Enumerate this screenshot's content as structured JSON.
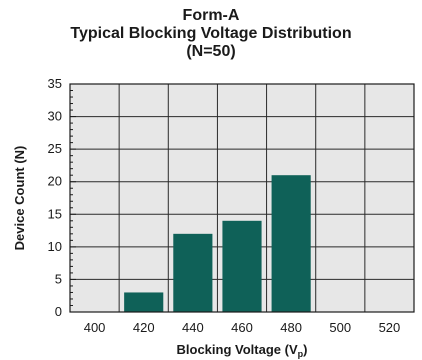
{
  "chart_data": {
    "type": "bar",
    "title_lines": [
      "Form-A",
      "Typical Blocking Voltage Distribution",
      "(N=50)"
    ],
    "xlabel": "Blocking Voltage (V",
    "xlabel_subscript": "p",
    "xlabel_suffix": ")",
    "ylabel": "Device Count (N)",
    "x_ticks": [
      "400",
      "420",
      "440",
      "460",
      "480",
      "500",
      "520"
    ],
    "y_ticks": [
      "0",
      "5",
      "10",
      "15",
      "20",
      "25",
      "30",
      "35"
    ],
    "ylim": [
      0,
      35
    ],
    "categories": [
      "420",
      "440",
      "460",
      "480"
    ],
    "values": [
      3,
      12,
      14,
      21
    ],
    "grid": true,
    "minor_ticks": true,
    "colors": {
      "bar": "#0f6158",
      "plot_bg": "#e7e7e7",
      "grid": "#2a2a2a"
    }
  }
}
